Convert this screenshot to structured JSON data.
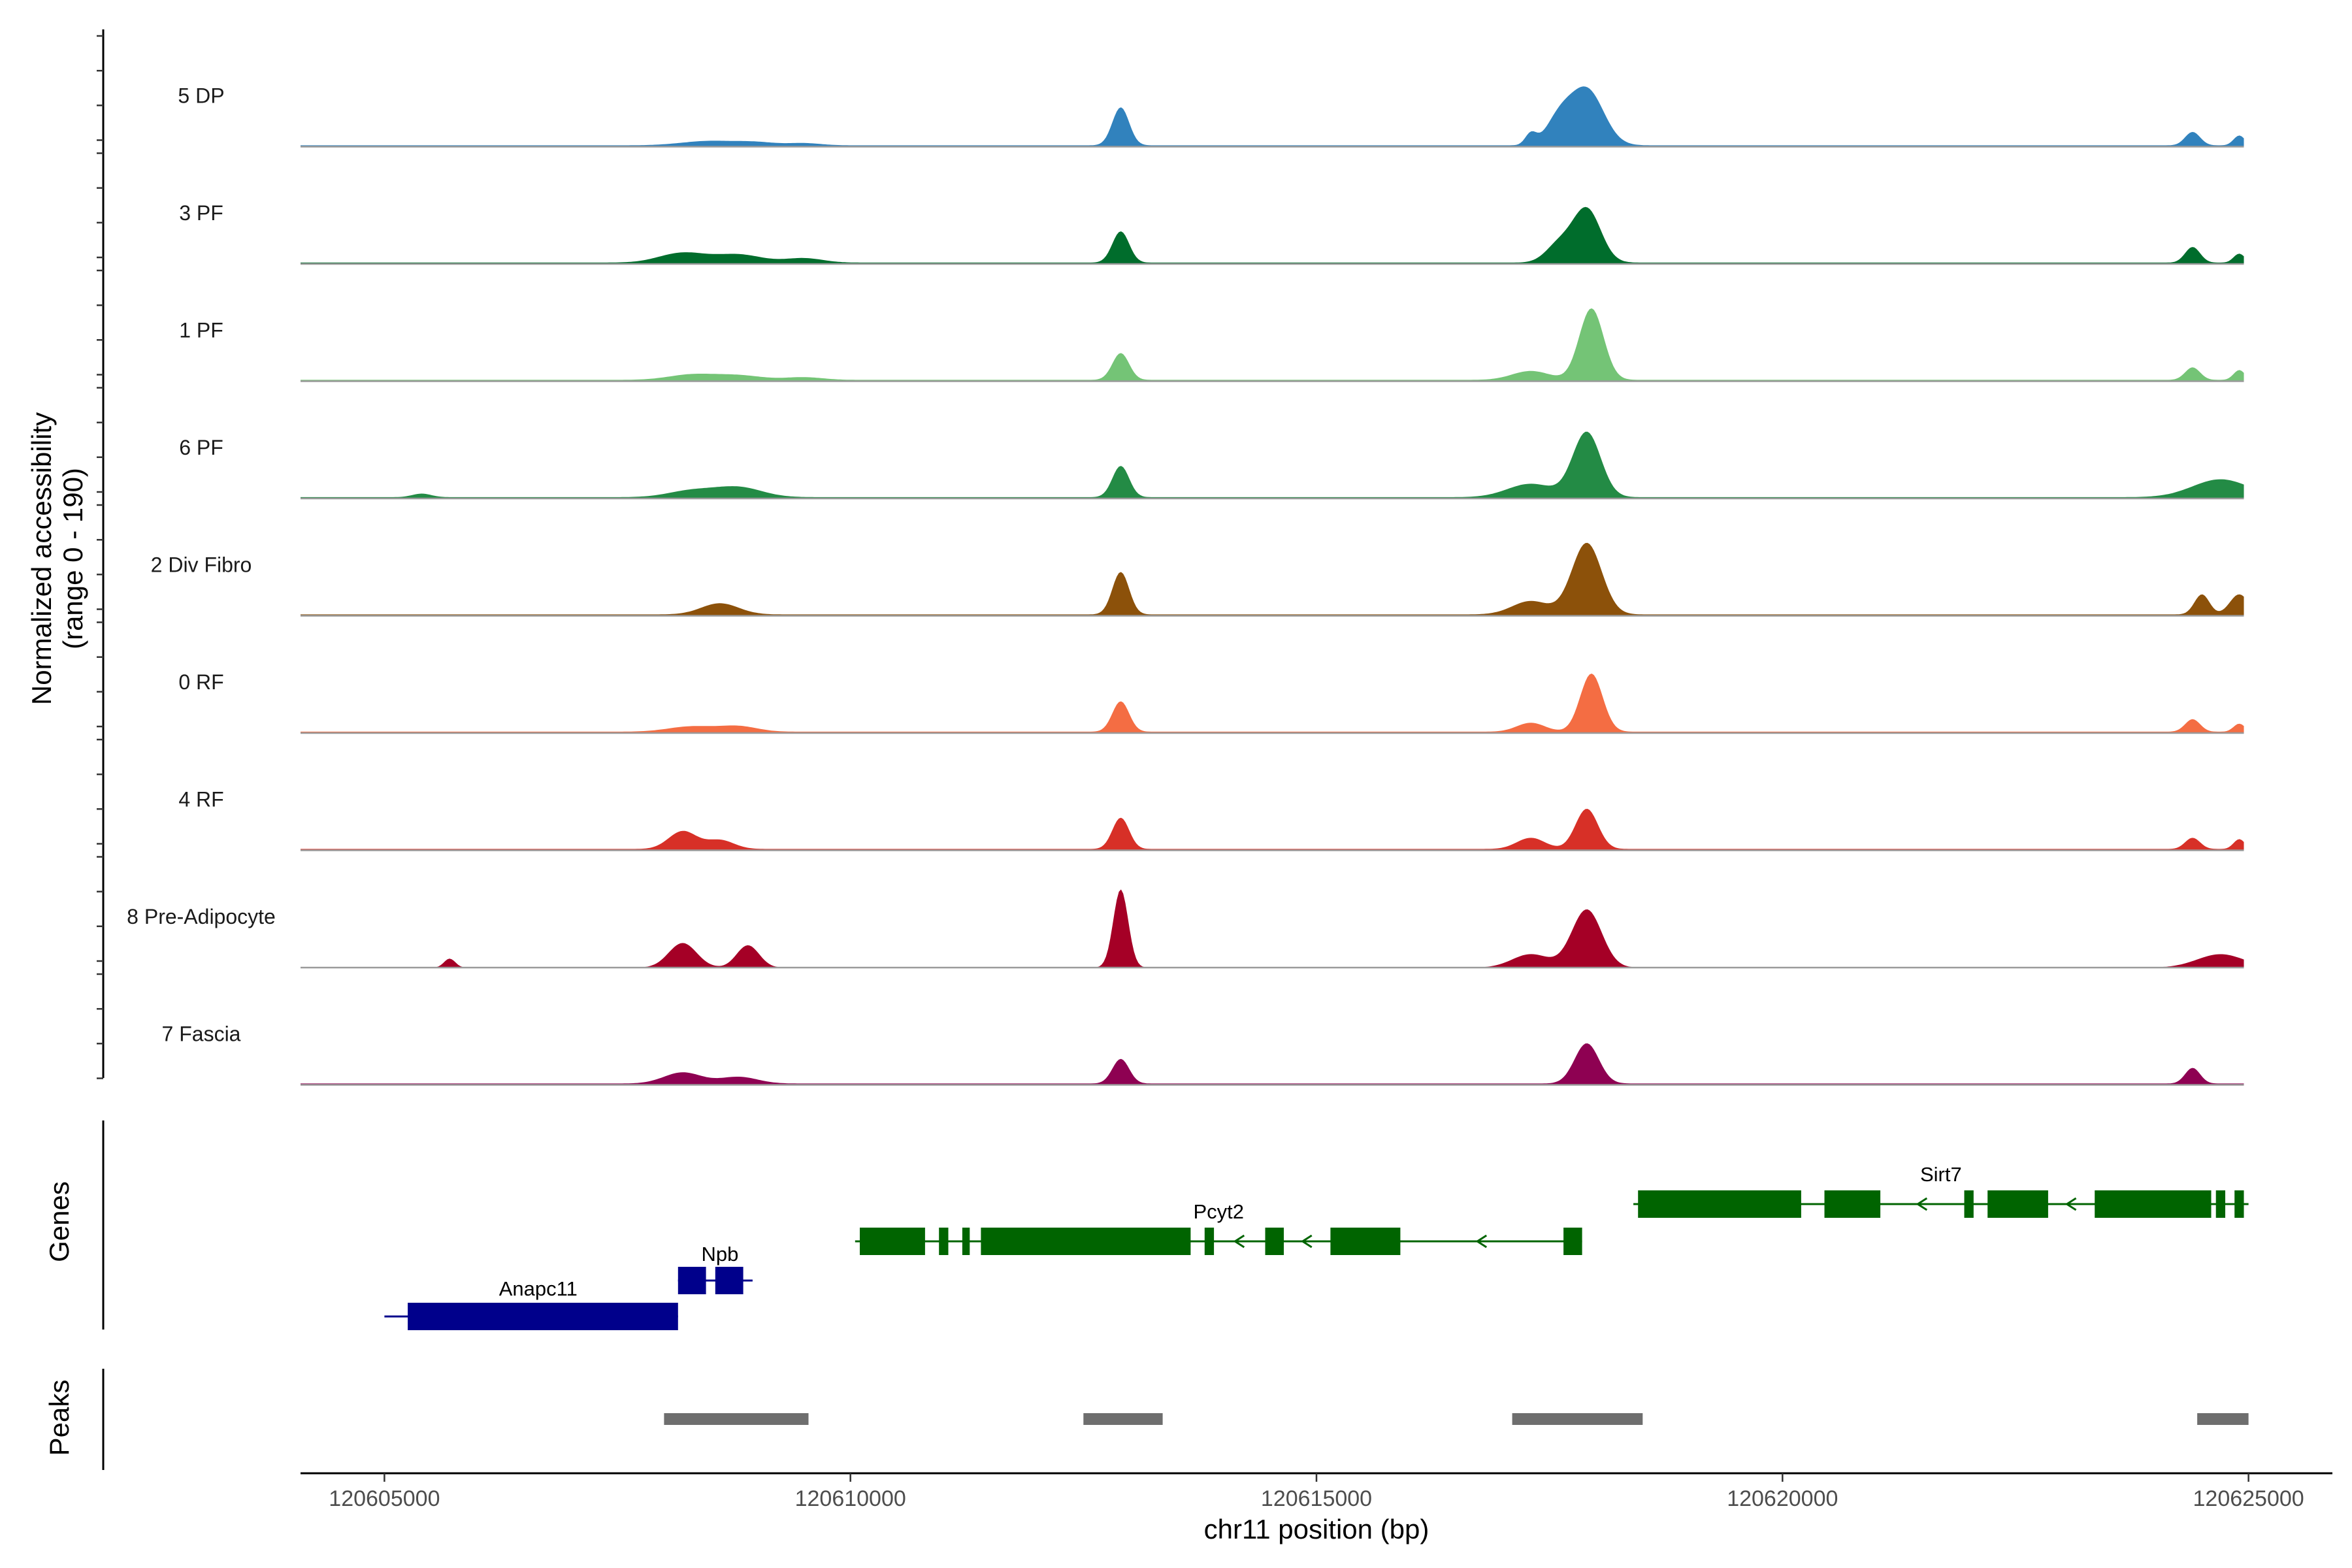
{
  "chart_data": {
    "type": "area",
    "title": "",
    "xlabel": "chr11 position (bp)",
    "ylabel": "Normalized accessibility",
    "ylabel_sub": "(range 0 - 190)",
    "xlim": [
      120604100,
      120625900
    ],
    "x_ticks": [
      {
        "value": 120605000,
        "label": "120605000"
      },
      {
        "value": 120610000,
        "label": "120610000"
      },
      {
        "value": 120615000,
        "label": "120615000"
      },
      {
        "value": 120620000,
        "label": "120620000"
      },
      {
        "value": 120625000,
        "label": "120625000"
      }
    ],
    "region": [
      120604100,
      120624950
    ],
    "ylim": [
      0,
      190
    ],
    "series": [
      {
        "name": "5 DP",
        "color": "#3182BD",
        "baseline": 3,
        "peaks": [
          [
            120608500,
            300,
            10
          ],
          [
            120609000,
            200,
            6
          ],
          [
            120609500,
            180,
            5
          ],
          [
            120612900,
            90,
            85
          ],
          [
            120617300,
            60,
            25
          ],
          [
            120617600,
            140,
            55
          ],
          [
            120617900,
            180,
            125
          ],
          [
            120624400,
            80,
            30
          ],
          [
            120624900,
            60,
            22
          ]
        ]
      },
      {
        "name": "3 PF",
        "color": "#006D2C",
        "baseline": 3,
        "peaks": [
          [
            120608200,
            250,
            22
          ],
          [
            120608800,
            250,
            18
          ],
          [
            120609500,
            200,
            10
          ],
          [
            120612900,
            90,
            70
          ],
          [
            120617600,
            140,
            40
          ],
          [
            120617900,
            150,
            120
          ],
          [
            120624400,
            80,
            35
          ],
          [
            120624900,
            60,
            20
          ]
        ]
      },
      {
        "name": "1 PF",
        "color": "#74C476",
        "baseline": 3,
        "peaks": [
          [
            120608300,
            250,
            12
          ],
          [
            120608800,
            250,
            10
          ],
          [
            120609500,
            200,
            6
          ],
          [
            120612900,
            90,
            60
          ],
          [
            120617300,
            200,
            20
          ],
          [
            120617950,
            130,
            160
          ],
          [
            120624400,
            80,
            28
          ],
          [
            120624900,
            60,
            22
          ]
        ]
      },
      {
        "name": "6 PF",
        "color": "#238B45",
        "baseline": 3,
        "peaks": [
          [
            120605400,
            100,
            8
          ],
          [
            120608300,
            250,
            15
          ],
          [
            120608800,
            250,
            22
          ],
          [
            120612900,
            90,
            70
          ],
          [
            120617300,
            250,
            30
          ],
          [
            120617900,
            150,
            145
          ],
          [
            120624700,
            300,
            40
          ]
        ]
      },
      {
        "name": "2 Div Fibro",
        "color": "#8C510A",
        "baseline": 3,
        "peaks": [
          [
            120608600,
            200,
            25
          ],
          [
            120612900,
            90,
            95
          ],
          [
            120617300,
            200,
            30
          ],
          [
            120617900,
            160,
            160
          ],
          [
            120624500,
            80,
            45
          ],
          [
            120624900,
            100,
            45
          ]
        ]
      },
      {
        "name": "0 RF",
        "color": "#F46D43",
        "baseline": 3,
        "peaks": [
          [
            120608300,
            250,
            12
          ],
          [
            120608800,
            200,
            12
          ],
          [
            120612900,
            90,
            68
          ],
          [
            120617300,
            150,
            20
          ],
          [
            120617950,
            120,
            130
          ],
          [
            120624400,
            80,
            28
          ],
          [
            120624900,
            60,
            18
          ]
        ]
      },
      {
        "name": "4 RF",
        "color": "#D73027",
        "baseline": 3,
        "peaks": [
          [
            120608200,
            150,
            40
          ],
          [
            120608600,
            150,
            20
          ],
          [
            120612900,
            90,
            70
          ],
          [
            120617300,
            150,
            25
          ],
          [
            120617900,
            120,
            90
          ],
          [
            120624400,
            80,
            25
          ],
          [
            120624900,
            60,
            22
          ]
        ]
      },
      {
        "name": "8 Pre-Adipocyte",
        "color": "#A50026",
        "baseline": 0,
        "peaks": [
          [
            120605700,
            60,
            20
          ],
          [
            120608200,
            150,
            55
          ],
          [
            120608900,
            120,
            50
          ],
          [
            120612900,
            80,
            175
          ],
          [
            120617300,
            200,
            30
          ],
          [
            120617900,
            160,
            130
          ],
          [
            120624700,
            250,
            30
          ]
        ]
      },
      {
        "name": "7 Fascia",
        "color": "#8E0152",
        "baseline": 3,
        "peaks": [
          [
            120608200,
            200,
            25
          ],
          [
            120608800,
            200,
            15
          ],
          [
            120612900,
            90,
            55
          ],
          [
            120617900,
            130,
            90
          ],
          [
            120624400,
            80,
            35
          ]
        ]
      }
    ],
    "genes": [
      {
        "name": "Npb",
        "color": "#00008B",
        "start": 120608150,
        "end": 120608950,
        "strand": "+",
        "exons": [
          [
            120608150,
            120608450
          ],
          [
            120608550,
            120608850
          ]
        ]
      },
      {
        "name": "Anapc11",
        "color": "#00008B",
        "start": 120605000,
        "end": 120608150,
        "strand": "+",
        "exons": [
          [
            120605250,
            120608150
          ]
        ]
      },
      {
        "name": "Pcyt2",
        "color": "#006400",
        "start": 120610050,
        "end": 120617850,
        "strand": "-",
        "exons": [
          [
            120610100,
            120610800
          ],
          [
            120610950,
            120611050
          ],
          [
            120611200,
            120611280
          ],
          [
            120611400,
            120613650
          ],
          [
            120613800,
            120613900
          ],
          [
            120614450,
            120614650
          ],
          [
            120615150,
            120615900
          ],
          [
            120617650,
            120617850
          ]
        ]
      },
      {
        "name": "Sirt7",
        "color": "#006400",
        "start": 120618400,
        "end": 120625000,
        "strand": "-",
        "exons": [
          [
            120618450,
            120620200
          ],
          [
            120620450,
            120621050
          ],
          [
            120621950,
            120622050
          ],
          [
            120622200,
            120622850
          ],
          [
            120623350,
            120624600
          ],
          [
            120624650,
            120624750
          ],
          [
            120624850,
            120624950
          ]
        ]
      }
    ],
    "peaks_track": [
      [
        120608000,
        120609550
      ],
      [
        120612500,
        120613350
      ],
      [
        120617100,
        120618500
      ],
      [
        120624450,
        120625000
      ]
    ],
    "panel_labels": {
      "genes": "Genes",
      "peaks": "Peaks"
    }
  }
}
